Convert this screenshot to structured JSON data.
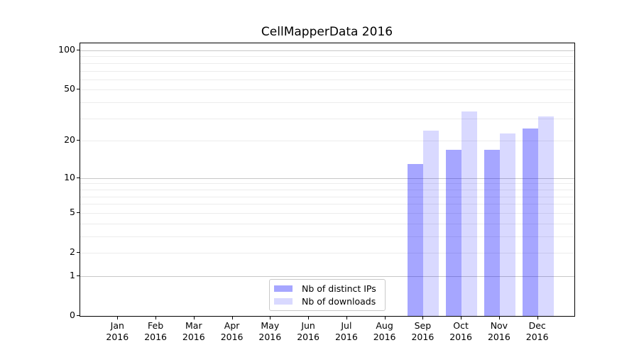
{
  "chart_data": {
    "type": "bar",
    "title": "CellMapperData 2016",
    "categories": [
      "Jan",
      "Feb",
      "Mar",
      "Apr",
      "May",
      "Jun",
      "Jul",
      "Aug",
      "Sep",
      "Oct",
      "Nov",
      "Dec"
    ],
    "category_year": "2016",
    "series": [
      {
        "name": "Nb of distinct IPs",
        "base_color": "#0000ff",
        "alpha": 0.35,
        "blended_hex": "#a6a6ff",
        "values": [
          0,
          0,
          0,
          0,
          0,
          0,
          0,
          0,
          13,
          17,
          17,
          25
        ]
      },
      {
        "name": "Nb of downloads",
        "base_color": "#0000ff",
        "alpha": 0.15,
        "blended_hex": "#d9d9ff",
        "values": [
          0,
          0,
          0,
          0,
          0,
          0,
          0,
          0,
          24,
          34,
          23,
          31
        ]
      }
    ],
    "yscale": "log1p",
    "ylim": [
      0,
      113
    ],
    "y_ticks": [
      0,
      1,
      2,
      5,
      10,
      20,
      50,
      100
    ],
    "major_gridlines": [
      1,
      10,
      100
    ],
    "minor_gridlines": [
      2,
      3,
      4,
      5,
      6,
      7,
      8,
      9,
      20,
      30,
      40,
      50,
      60,
      70,
      80,
      90
    ],
    "grid": true,
    "legend_position": "lower center-left inside plot"
  },
  "colors": {
    "major_grid": "#c8c8c8",
    "minor_grid": "#ececec",
    "spine": "#000000",
    "background": "#ffffff",
    "text": "#000000",
    "legend_border": "#c9c9c9"
  }
}
